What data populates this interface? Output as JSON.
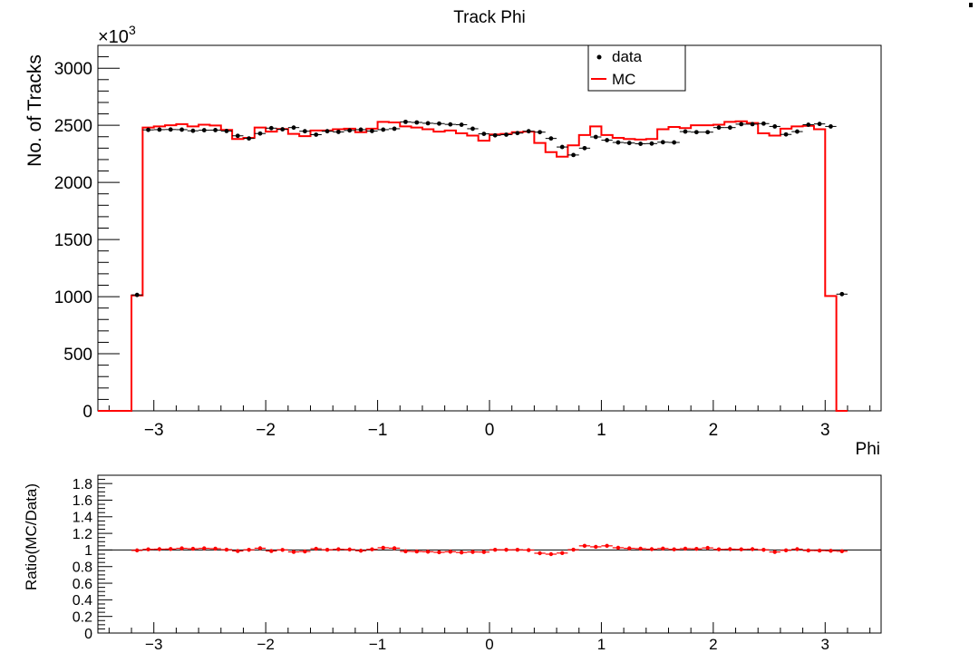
{
  "chart_data": [
    {
      "type": "line",
      "title": "Track Phi",
      "xlabel": "Phi",
      "ylabel": "No. of Tracks",
      "y_multiplier": "×10",
      "y_multiplier_exp": "3",
      "xlim": [
        -3.5,
        3.5
      ],
      "ylim": [
        0,
        3200
      ],
      "x_ticks": [
        -3,
        -2,
        -1,
        0,
        1,
        2,
        3
      ],
      "x_tick_labels": [
        "−3",
        "−2",
        "−1",
        "0",
        "1",
        "2",
        "3"
      ],
      "y_ticks": [
        0,
        500,
        1000,
        1500,
        2000,
        2500,
        3000
      ],
      "y_tick_labels": [
        "0",
        "500",
        "1000",
        "1500",
        "2000",
        "2500",
        "3000"
      ],
      "grid": false,
      "legend_position": "top-right",
      "legend": [
        {
          "label": "data",
          "marker": "dot",
          "color": "#000000"
        },
        {
          "label": "MC",
          "marker": "line",
          "color": "#ff0000"
        }
      ],
      "bin_edges": [
        -3.5,
        -3.2,
        -3.1,
        3.1,
        3.2,
        3.5
      ],
      "data_points": [
        [
          -3.15,
          1015
        ],
        [
          -3.05,
          2460
        ],
        [
          -2.95,
          2462
        ],
        [
          -2.85,
          2463
        ],
        [
          -2.75,
          2462
        ],
        [
          -2.65,
          2452
        ],
        [
          -2.55,
          2457
        ],
        [
          -2.45,
          2458
        ],
        [
          -2.35,
          2450
        ],
        [
          -2.25,
          2408
        ],
        [
          -2.15,
          2385
        ],
        [
          -2.05,
          2428
        ],
        [
          -1.95,
          2475
        ],
        [
          -1.85,
          2465
        ],
        [
          -1.75,
          2480
        ],
        [
          -1.65,
          2448
        ],
        [
          -1.55,
          2418
        ],
        [
          -1.45,
          2448
        ],
        [
          -1.35,
          2442
        ],
        [
          -1.25,
          2455
        ],
        [
          -1.15,
          2462
        ],
        [
          -1.05,
          2450
        ],
        [
          -0.95,
          2462
        ],
        [
          -0.85,
          2470
        ],
        [
          -0.75,
          2530
        ],
        [
          -0.65,
          2525
        ],
        [
          -0.55,
          2518
        ],
        [
          -0.45,
          2515
        ],
        [
          -0.35,
          2508
        ],
        [
          -0.25,
          2505
        ],
        [
          -0.15,
          2470
        ],
        [
          -0.05,
          2425
        ],
        [
          0.05,
          2412
        ],
        [
          0.15,
          2418
        ],
        [
          0.25,
          2432
        ],
        [
          0.35,
          2448
        ],
        [
          0.45,
          2440
        ],
        [
          0.55,
          2385
        ],
        [
          0.65,
          2310
        ],
        [
          0.75,
          2240
        ],
        [
          0.85,
          2300
        ],
        [
          0.95,
          2398
        ],
        [
          1.05,
          2370
        ],
        [
          1.15,
          2350
        ],
        [
          1.25,
          2345
        ],
        [
          1.35,
          2338
        ],
        [
          1.45,
          2340
        ],
        [
          1.55,
          2352
        ],
        [
          1.65,
          2350
        ],
        [
          1.75,
          2445
        ],
        [
          1.85,
          2440
        ],
        [
          1.95,
          2440
        ],
        [
          2.05,
          2480
        ],
        [
          2.15,
          2480
        ],
        [
          2.25,
          2510
        ],
        [
          2.35,
          2510
        ],
        [
          2.45,
          2515
        ],
        [
          2.55,
          2490
        ],
        [
          2.65,
          2420
        ],
        [
          2.75,
          2445
        ],
        [
          2.85,
          2505
        ],
        [
          2.95,
          2512
        ],
        [
          3.05,
          2490
        ],
        [
          3.15,
          1022
        ]
      ],
      "mc_values": [
        0,
        1010,
        2480,
        2490,
        2500,
        2510,
        2490,
        2505,
        2498,
        2460,
        2380,
        2390,
        2480,
        2445,
        2468,
        2425,
        2405,
        2455,
        2455,
        2465,
        2470,
        2440,
        2470,
        2530,
        2525,
        2490,
        2480,
        2465,
        2445,
        2455,
        2430,
        2410,
        2365,
        2420,
        2425,
        2440,
        2445,
        2345,
        2265,
        2225,
        2325,
        2415,
        2490,
        2415,
        2390,
        2380,
        2375,
        2380,
        2465,
        2485,
        2475,
        2500,
        2500,
        2505,
        2530,
        2535,
        2520,
        2430,
        2410,
        2470,
        2490,
        2495,
        2465,
        1005,
        0
      ]
    },
    {
      "type": "line",
      "ylabel": "Ratio(MC/Data)",
      "xlim": [
        -3.5,
        3.5
      ],
      "ylim": [
        0,
        1.9
      ],
      "x_ticks": [
        -3,
        -2,
        -1,
        0,
        1,
        2,
        3
      ],
      "x_tick_labels": [
        "−3",
        "−2",
        "−1",
        "0",
        "1",
        "2",
        "3"
      ],
      "y_ticks": [
        0,
        0.2,
        0.4,
        0.6,
        0.8,
        1,
        1.2,
        1.4,
        1.6,
        1.8
      ],
      "y_tick_labels": [
        "0",
        "0.2",
        "0.4",
        "0.6",
        "0.8",
        "1",
        "1.2",
        "1.4",
        "1.6",
        "1.8"
      ],
      "reference_line": 1,
      "ratio_points": [
        [
          -3.15,
          0.995
        ],
        [
          -3.05,
          1.008
        ],
        [
          -2.95,
          1.01
        ],
        [
          -2.85,
          1.012
        ],
        [
          -2.75,
          1.02
        ],
        [
          -2.65,
          1.015
        ],
        [
          -2.55,
          1.02
        ],
        [
          -2.45,
          1.016
        ],
        [
          -2.35,
          1.004
        ],
        [
          -2.25,
          0.988
        ],
        [
          -2.15,
          1.002
        ],
        [
          -2.05,
          1.021
        ],
        [
          -1.95,
          0.988
        ],
        [
          -1.85,
          1.001
        ],
        [
          -1.75,
          0.977
        ],
        [
          -1.65,
          0.982
        ],
        [
          -1.55,
          1.015
        ],
        [
          -1.45,
          1.003
        ],
        [
          -1.35,
          1.009
        ],
        [
          -1.25,
          1.006
        ],
        [
          -1.15,
          0.991
        ],
        [
          -1.05,
          1.008
        ],
        [
          -0.95,
          1.027
        ],
        [
          -0.85,
          1.022
        ],
        [
          -0.75,
          0.984
        ],
        [
          -0.65,
          0.982
        ],
        [
          -0.55,
          0.979
        ],
        [
          -0.45,
          0.972
        ],
        [
          -0.35,
          0.979
        ],
        [
          -0.25,
          0.97
        ],
        [
          -0.15,
          0.976
        ],
        [
          -0.05,
          0.975
        ],
        [
          0.05,
          1.003
        ],
        [
          0.15,
          1.002
        ],
        [
          0.25,
          1.003
        ],
        [
          0.35,
          0.999
        ],
        [
          0.45,
          0.961
        ],
        [
          0.55,
          0.95
        ],
        [
          0.65,
          0.963
        ],
        [
          0.75,
          1.004
        ],
        [
          0.85,
          1.05
        ],
        [
          0.95,
          1.038
        ],
        [
          1.05,
          1.05
        ],
        [
          1.15,
          1.027
        ],
        [
          1.25,
          1.02
        ],
        [
          1.35,
          1.016
        ],
        [
          1.45,
          1.01
        ],
        [
          1.55,
          1.018
        ],
        [
          1.65,
          1.008
        ],
        [
          1.75,
          1.016
        ],
        [
          1.85,
          1.014
        ],
        [
          1.95,
          1.025
        ],
        [
          2.05,
          1.008
        ],
        [
          2.15,
          1.01
        ],
        [
          2.25,
          1.008
        ],
        [
          2.35,
          1.01
        ],
        [
          2.45,
          1.002
        ],
        [
          2.55,
          0.976
        ],
        [
          2.65,
          0.996
        ],
        [
          2.75,
          1.01
        ],
        [
          2.85,
          0.994
        ],
        [
          2.95,
          0.993
        ],
        [
          3.05,
          0.99
        ],
        [
          3.15,
          0.985
        ]
      ]
    }
  ]
}
